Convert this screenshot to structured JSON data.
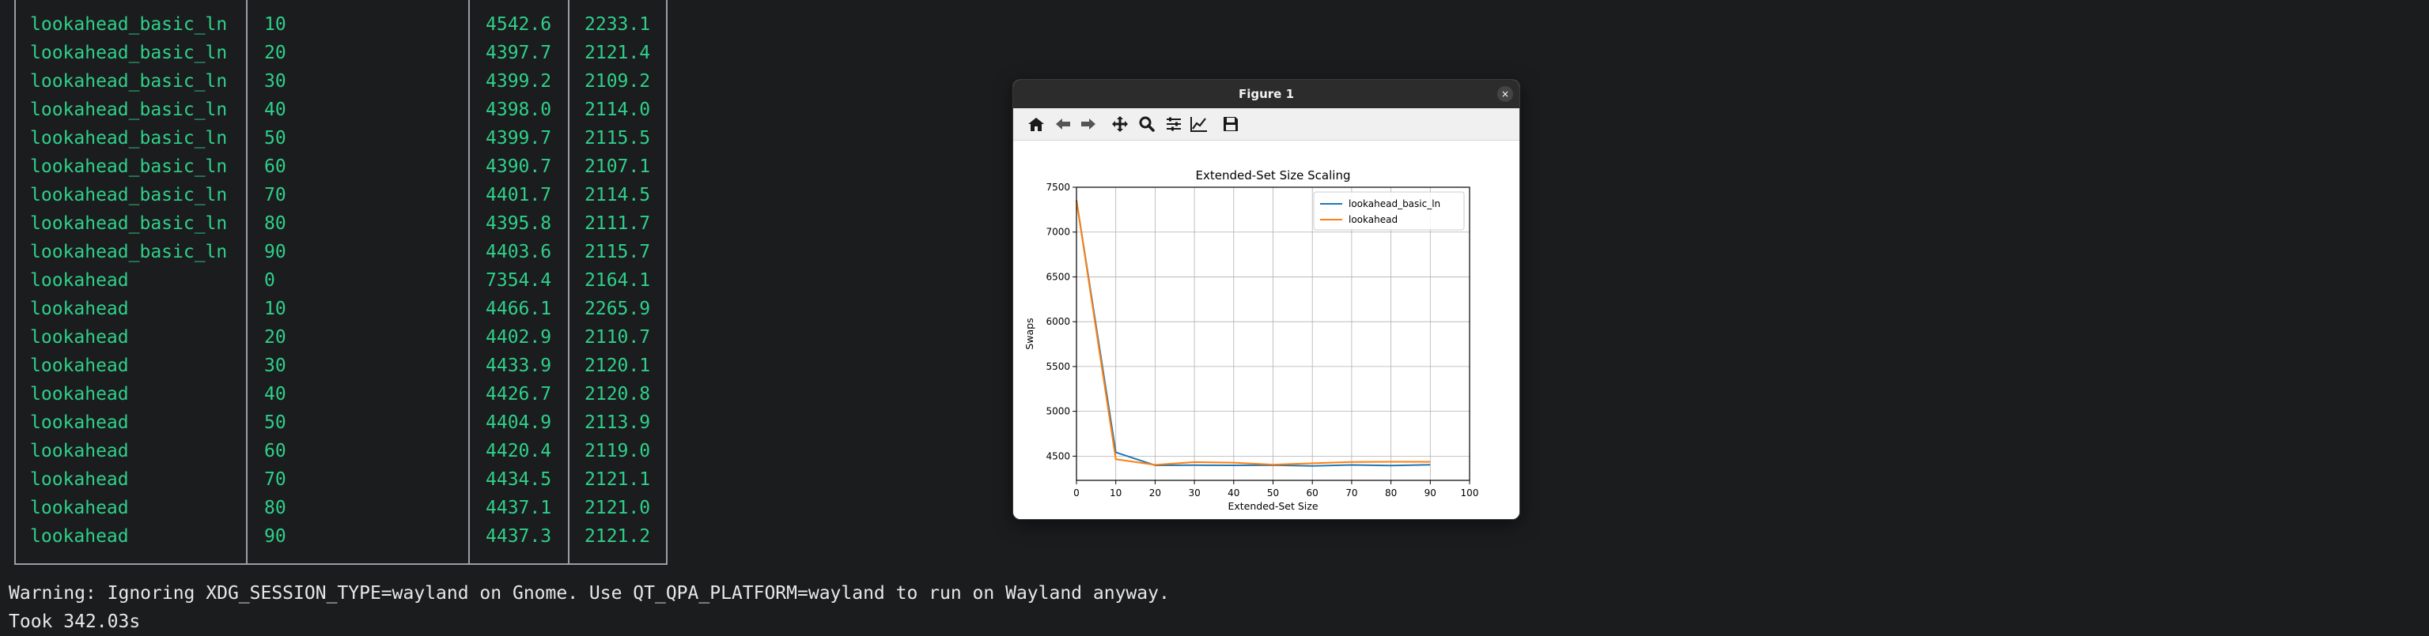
{
  "terminal": {
    "rows": [
      [
        "lookahead_basic_ln",
        "10",
        "4542.6",
        "2233.1"
      ],
      [
        "lookahead_basic_ln",
        "20",
        "4397.7",
        "2121.4"
      ],
      [
        "lookahead_basic_ln",
        "30",
        "4399.2",
        "2109.2"
      ],
      [
        "lookahead_basic_ln",
        "40",
        "4398.0",
        "2114.0"
      ],
      [
        "lookahead_basic_ln",
        "50",
        "4399.7",
        "2115.5"
      ],
      [
        "lookahead_basic_ln",
        "60",
        "4390.7",
        "2107.1"
      ],
      [
        "lookahead_basic_ln",
        "70",
        "4401.7",
        "2114.5"
      ],
      [
        "lookahead_basic_ln",
        "80",
        "4395.8",
        "2111.7"
      ],
      [
        "lookahead_basic_ln",
        "90",
        "4403.6",
        "2115.7"
      ],
      [
        "lookahead",
        "0",
        "7354.4",
        "2164.1"
      ],
      [
        "lookahead",
        "10",
        "4466.1",
        "2265.9"
      ],
      [
        "lookahead",
        "20",
        "4402.9",
        "2110.7"
      ],
      [
        "lookahead",
        "30",
        "4433.9",
        "2120.1"
      ],
      [
        "lookahead",
        "40",
        "4426.7",
        "2120.8"
      ],
      [
        "lookahead",
        "50",
        "4404.9",
        "2113.9"
      ],
      [
        "lookahead",
        "60",
        "4420.4",
        "2119.0"
      ],
      [
        "lookahead",
        "70",
        "4434.5",
        "2121.1"
      ],
      [
        "lookahead",
        "80",
        "4437.1",
        "2121.0"
      ],
      [
        "lookahead",
        "90",
        "4437.3",
        "2121.2"
      ]
    ],
    "warning": "Warning: Ignoring XDG_SESSION_TYPE=wayland on Gnome. Use QT_QPA_PLATFORM=wayland to run on Wayland anyway.",
    "took": "Took 342.03s"
  },
  "figure_window": {
    "title": "Figure 1",
    "close_glyph": "×",
    "toolbar_icons": [
      "home-icon",
      "back-arrow-icon",
      "forward-arrow-icon",
      "pan-icon",
      "zoom-icon",
      "configure-subplots-icon",
      "edit-axis-icon",
      "save-icon"
    ]
  },
  "colors": {
    "terminal_bg": "#1b1c1e",
    "terminal_text": "#2fd08a",
    "series_blue": "#1f77b4",
    "series_orange": "#ff7f0e"
  },
  "chart_data": {
    "type": "line",
    "title": "Extended-Set Size Scaling",
    "xlabel": "Extended-Set Size",
    "ylabel": "Swaps",
    "xlim": [
      0,
      100
    ],
    "ylim": [
      4230,
      7500
    ],
    "xticks": [
      0,
      10,
      20,
      30,
      40,
      50,
      60,
      70,
      80,
      90,
      100
    ],
    "yticks": [
      4500,
      5000,
      5500,
      6000,
      6500,
      7000,
      7500
    ],
    "grid": true,
    "legend_position": "top-right",
    "series": [
      {
        "name": "lookahead_basic_ln",
        "color": "#1f77b4",
        "x": [
          0,
          10,
          20,
          30,
          40,
          50,
          60,
          70,
          80,
          90
        ],
        "y": [
          7354.4,
          4542.6,
          4397.7,
          4399.2,
          4398.0,
          4399.7,
          4390.7,
          4401.7,
          4395.8,
          4403.6
        ]
      },
      {
        "name": "lookahead",
        "color": "#ff7f0e",
        "x": [
          0,
          10,
          20,
          30,
          40,
          50,
          60,
          70,
          80,
          90
        ],
        "y": [
          7354.4,
          4466.1,
          4402.9,
          4433.9,
          4426.7,
          4404.9,
          4420.4,
          4434.5,
          4437.1,
          4437.3
        ]
      }
    ]
  }
}
